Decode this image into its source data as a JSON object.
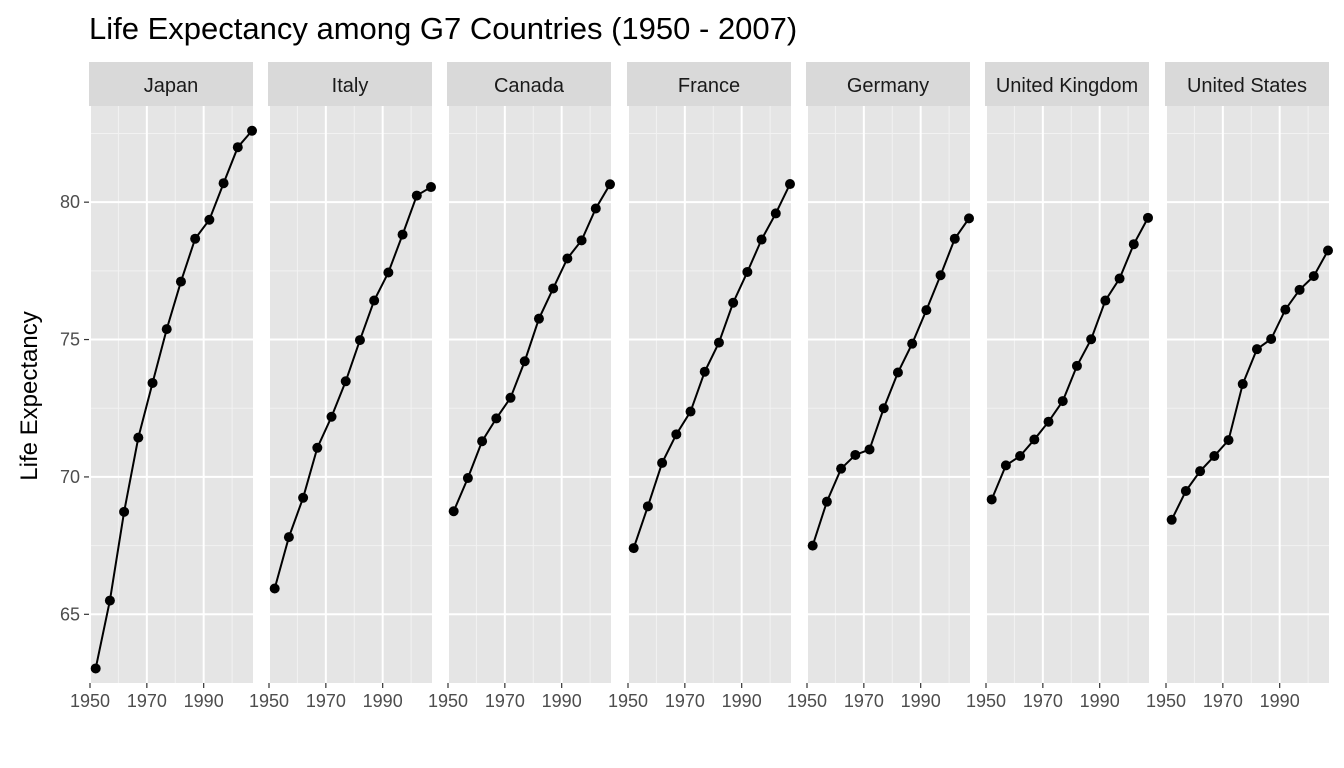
{
  "chart_data": {
    "type": "line",
    "facet_layout": "horizontal",
    "title": "Life Expectancy among G7 Countries (1950 - 2007)",
    "xlabel": "",
    "ylabel": "Life Expectancy",
    "xlim": [
      1950,
      2007
    ],
    "ylim": [
      62.5,
      83.5
    ],
    "x_ticks": [
      1950,
      1970,
      1990
    ],
    "y_ticks": [
      65,
      70,
      75,
      80
    ],
    "grid": true,
    "x": [
      1952,
      1957,
      1962,
      1967,
      1972,
      1977,
      1982,
      1987,
      1992,
      1997,
      2002,
      2007
    ],
    "series": [
      {
        "name": "Japan",
        "values": [
          63.03,
          65.5,
          68.73,
          71.43,
          73.42,
          75.38,
          77.11,
          78.67,
          79.36,
          80.69,
          82.0,
          82.6
        ]
      },
      {
        "name": "Italy",
        "values": [
          65.94,
          67.81,
          69.24,
          71.06,
          72.19,
          73.48,
          74.98,
          76.42,
          77.44,
          78.82,
          80.24,
          80.55
        ]
      },
      {
        "name": "Canada",
        "values": [
          68.75,
          69.96,
          71.3,
          72.13,
          72.88,
          74.21,
          75.76,
          76.86,
          77.95,
          78.61,
          79.77,
          80.65
        ]
      },
      {
        "name": "France",
        "values": [
          67.41,
          68.93,
          70.51,
          71.55,
          72.38,
          73.83,
          74.89,
          76.34,
          77.46,
          78.64,
          79.59,
          80.66
        ]
      },
      {
        "name": "Germany",
        "values": [
          67.5,
          69.1,
          70.3,
          70.8,
          71.0,
          72.5,
          73.8,
          74.85,
          76.07,
          77.34,
          78.67,
          79.41
        ]
      },
      {
        "name": "United Kingdom",
        "values": [
          69.18,
          70.42,
          70.76,
          71.36,
          72.01,
          72.76,
          74.04,
          75.01,
          76.42,
          77.22,
          78.47,
          79.43
        ]
      },
      {
        "name": "United States",
        "values": [
          68.44,
          69.49,
          70.21,
          70.76,
          71.34,
          73.38,
          74.65,
          75.02,
          76.09,
          76.81,
          77.31,
          78.24
        ]
      }
    ]
  },
  "colors": {
    "panel_background": "#e5e5e5",
    "grid_major": "#ffffff",
    "grid_minor": "#f2f2f2",
    "strip_background": "#d9d9d9",
    "line": "#000000",
    "point": "#000000",
    "tick_text": "#4d4d4d",
    "axis_ticks": "#333333"
  }
}
